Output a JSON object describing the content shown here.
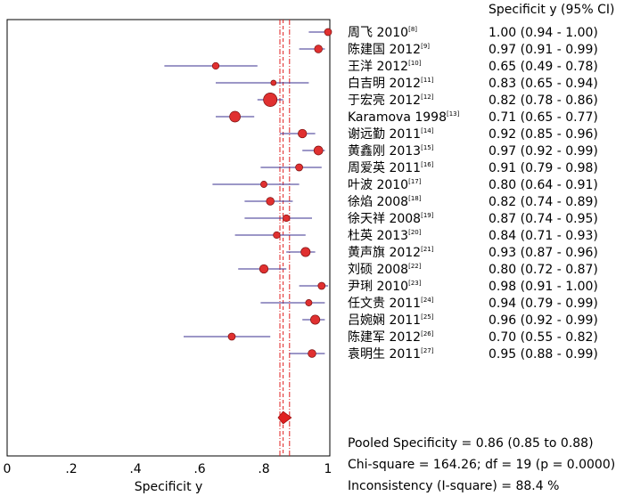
{
  "chart_data": {
    "type": "forest",
    "column_header": "Specificit y (95% CI)",
    "xlabel": "Specificit y",
    "xlim": [
      0,
      1
    ],
    "xticks": [
      "0",
      ".2",
      ".4",
      ".6",
      ".8",
      "1"
    ],
    "xtick_values": [
      0,
      0.2,
      0.4,
      0.6,
      0.8,
      1.0
    ],
    "pooled_line": 0.86,
    "pooled_ci": [
      0.85,
      0.88
    ],
    "studies": [
      {
        "label": "周飞 2010",
        "ref": "[8]",
        "value": 1.0,
        "ci": [
          0.94,
          1.0
        ],
        "ci_text": "1.00 (0.94 - 1.00)",
        "weight": 1.0
      },
      {
        "label": "陈建国 2012",
        "ref": "[9]",
        "value": 0.97,
        "ci": [
          0.91,
          0.99
        ],
        "ci_text": "0.97 (0.91 - 0.99)",
        "weight": 1.1
      },
      {
        "label": "王洋 2012",
        "ref": "[10]",
        "value": 0.65,
        "ci": [
          0.49,
          0.78
        ],
        "ci_text": "0.65 (0.49 - 0.78)",
        "weight": 0.95
      },
      {
        "label": "白吉明 2012",
        "ref": "[11]",
        "value": 0.83,
        "ci": [
          0.65,
          0.94
        ],
        "ci_text": "0.83 (0.65 - 0.94)",
        "weight": 0.75
      },
      {
        "label": "于宏亮 2012",
        "ref": "[12]",
        "value": 0.82,
        "ci": [
          0.78,
          0.86
        ],
        "ci_text": "0.82 (0.78 - 0.86)",
        "weight": 1.9
      },
      {
        "label": "Karamova 1998",
        "ref": "[13]",
        "value": 0.71,
        "ci": [
          0.65,
          0.77
        ],
        "ci_text": "0.71 (0.65 - 0.77)",
        "weight": 1.5
      },
      {
        "label": "谢远勤 2011",
        "ref": "[14]",
        "value": 0.92,
        "ci": [
          0.85,
          0.96
        ],
        "ci_text": "0.92 (0.85 - 0.96)",
        "weight": 1.2
      },
      {
        "label": "黄鑫刚 2013",
        "ref": "[15]",
        "value": 0.97,
        "ci": [
          0.92,
          0.99
        ],
        "ci_text": "0.97 (0.92 - 0.99)",
        "weight": 1.25
      },
      {
        "label": "周爱英 2011",
        "ref": "[16]",
        "value": 0.91,
        "ci": [
          0.79,
          0.98
        ],
        "ci_text": "0.91 (0.79 - 0.98)",
        "weight": 1.0
      },
      {
        "label": "叶波 2010",
        "ref": "[17]",
        "value": 0.8,
        "ci": [
          0.64,
          0.91
        ],
        "ci_text": "0.80 (0.64 - 0.91)",
        "weight": 0.9
      },
      {
        "label": "徐焰 2008",
        "ref": "[18]",
        "value": 0.82,
        "ci": [
          0.74,
          0.89
        ],
        "ci_text": "0.82 (0.74 - 0.89)",
        "weight": 1.1
      },
      {
        "label": "徐天祥 2008",
        "ref": "[19]",
        "value": 0.87,
        "ci": [
          0.74,
          0.95
        ],
        "ci_text": "0.87 (0.74 - 0.95)",
        "weight": 0.95
      },
      {
        "label": "杜英 2013",
        "ref": "[20]",
        "value": 0.84,
        "ci": [
          0.71,
          0.93
        ],
        "ci_text": "0.84 (0.71 - 0.93)",
        "weight": 0.95
      },
      {
        "label": "黄声旗 2012",
        "ref": "[21]",
        "value": 0.93,
        "ci": [
          0.87,
          0.96
        ],
        "ci_text": "0.93 (0.87 - 0.96)",
        "weight": 1.3
      },
      {
        "label": "刘硕 2008",
        "ref": "[22]",
        "value": 0.8,
        "ci": [
          0.72,
          0.87
        ],
        "ci_text": "0.80 (0.72 - 0.87)",
        "weight": 1.2
      },
      {
        "label": "尹琍 2010",
        "ref": "[23]",
        "value": 0.98,
        "ci": [
          0.91,
          1.0
        ],
        "ci_text": "0.98 (0.91 - 1.00)",
        "weight": 1.0
      },
      {
        "label": "任文贵 2011",
        "ref": "[24]",
        "value": 0.94,
        "ci": [
          0.79,
          0.99
        ],
        "ci_text": "0.94 (0.79 - 0.99)",
        "weight": 0.9
      },
      {
        "label": "吕婉娴 2011",
        "ref": "[25]",
        "value": 0.96,
        "ci": [
          0.92,
          0.99
        ],
        "ci_text": "0.96 (0.92 - 0.99)",
        "weight": 1.3
      },
      {
        "label": "陈建军 2012",
        "ref": "[26]",
        "value": 0.7,
        "ci": [
          0.55,
          0.82
        ],
        "ci_text": "0.70 (0.55 - 0.82)",
        "weight": 1.0
      },
      {
        "label": "袁明生 2011",
        "ref": "[27]",
        "value": 0.95,
        "ci": [
          0.88,
          0.99
        ],
        "ci_text": "0.95 (0.88 - 0.99)",
        "weight": 1.1
      }
    ],
    "footer": {
      "pooled": "Pooled Specificity = 0.86 (0.85 to 0.88)",
      "chi_square": "Chi-square = 164.26; df = 19 (p = 0.0000)",
      "inconsistency": "Inconsistency (I-square) = 88.4 %"
    },
    "colors": {
      "marker": "#e03030",
      "ci_line": "#3a2f8f",
      "pooled_line": "#e02020",
      "pooled_diamond": "#e02020"
    }
  }
}
